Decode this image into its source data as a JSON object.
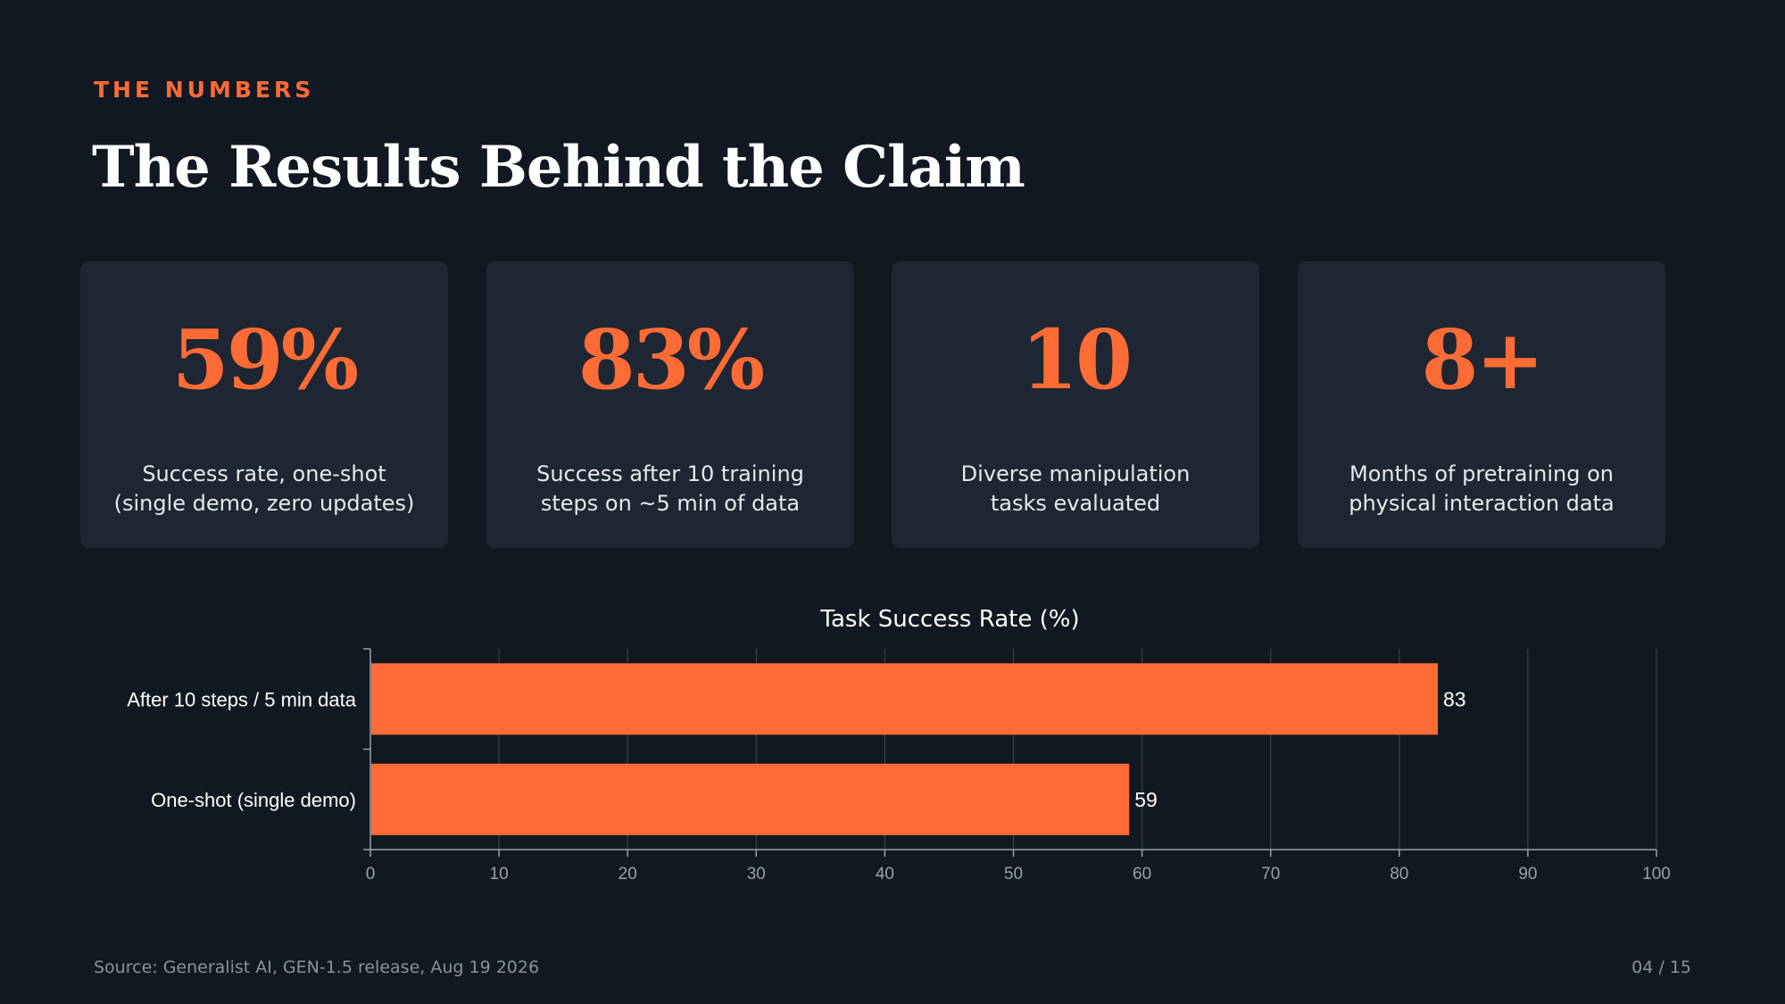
{
  "slide": {
    "eyebrow": "THE NUMBERS",
    "title": "The Results Behind the Claim",
    "source": "Source: Generalist AI, GEN-1.5 release, Aug 19 2026",
    "page": "04 / 15"
  },
  "cards": [
    {
      "value": "59%",
      "label_line1": "Success rate, one-shot",
      "label_line2": "(single demo, zero updates)"
    },
    {
      "value": "83%",
      "label_line1": "Success after 10 training",
      "label_line2": "steps on ~5 min of data"
    },
    {
      "value": "10",
      "label_line1": "Diverse manipulation",
      "label_line2": "tasks evaluated"
    },
    {
      "value": "8+",
      "label_line1": "Months of pretraining on",
      "label_line2": "physical interaction data"
    }
  ],
  "colors": {
    "background": "#121821",
    "card": "#1e2633",
    "accent": "#ff6b35",
    "text": "#ffffff",
    "muted": "#8a929e"
  },
  "chart_data": {
    "type": "bar",
    "orientation": "horizontal",
    "title": "Task Success Rate (%)",
    "categories": [
      "After 10 steps / 5 min data",
      "One-shot (single demo)"
    ],
    "values": [
      83,
      59
    ],
    "data_labels": [
      "83",
      "59"
    ],
    "xlim": [
      0,
      100
    ],
    "xticks": [
      0,
      10,
      20,
      30,
      40,
      50,
      60,
      70,
      80,
      90,
      100
    ],
    "xtick_labels": [
      "0",
      "10",
      "20",
      "30",
      "40",
      "50",
      "60",
      "70",
      "80",
      "90",
      "100"
    ],
    "xlabel": "",
    "ylabel": "",
    "grid": "vertical",
    "bar_color": "#ff6b35"
  }
}
